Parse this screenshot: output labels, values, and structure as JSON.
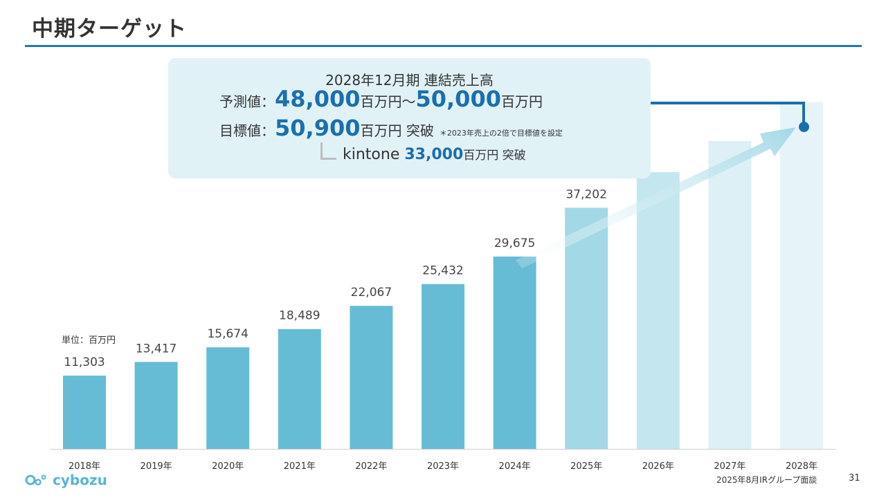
{
  "page": {
    "title": "中期ターゲット",
    "unit_label": "単位：百万円",
    "footer": "2025年8月IRグループ面談",
    "page_number": "31",
    "logo_text": "cybozu"
  },
  "callout": {
    "heading": "2028年12月期 連結売上高",
    "forecast_label": "予測値：",
    "forecast_low": "48,000",
    "forecast_unit1": "百万円",
    "tilde": "〜",
    "forecast_high": "50,000",
    "forecast_unit2": "百万円",
    "target_label": "目標値：",
    "target_value": "50,900",
    "target_unit": "百万円",
    "target_suffix": " 突破",
    "target_note": "＊2023年売上の2倍で目標値を設定",
    "kintone_word": "kintone ",
    "kintone_value": "33,000",
    "kintone_unit": "百万円 突破"
  },
  "colors": {
    "bar_actual": "#66bcd4",
    "bar_2025": "#a3d8e6",
    "bar_2026": "#c4e6ef",
    "bar_2027": "#dcf0f6",
    "bar_2028": "#e6f4f9",
    "accent": "#1a6fae"
  },
  "chart_data": {
    "type": "bar",
    "categories": [
      "2018年",
      "2019年",
      "2020年",
      "2021年",
      "2022年",
      "2023年",
      "2024年",
      "2025年",
      "2026年",
      "2027年",
      "2028年"
    ],
    "values": [
      11303,
      13417,
      15674,
      18489,
      22067,
      25432,
      29675,
      37202,
      42700,
      47500,
      53500
    ],
    "labels": [
      "11,303",
      "13,417",
      "15,674",
      "18,489",
      "22,067",
      "25,432",
      "29,675",
      "37,202",
      "",
      "",
      ""
    ],
    "ylim": [
      0,
      62000
    ],
    "grid": false,
    "ylabel": "単位：百万円"
  }
}
